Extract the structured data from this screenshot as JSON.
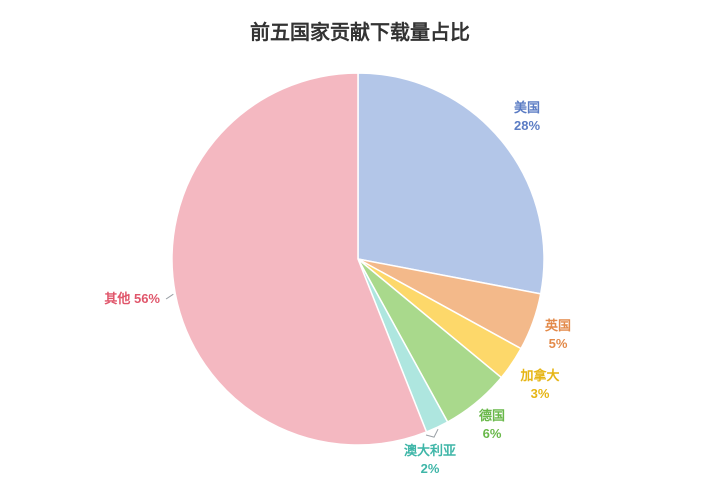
{
  "chart_data": {
    "type": "pie",
    "title": "前五国家贡献下载量占比",
    "slices": [
      {
        "name": "美国",
        "value": 28,
        "label_pct": "28%",
        "color": "#b3c6e8",
        "label_color": "#5b7cc4"
      },
      {
        "name": "英国",
        "value": 5,
        "label_pct": "5%",
        "color": "#f3b98a",
        "label_color": "#e38a4a"
      },
      {
        "name": "加拿大",
        "value": 3,
        "label_pct": "3%",
        "color": "#fdd86a",
        "label_color": "#e6b514"
      },
      {
        "name": "德国",
        "value": 6,
        "label_pct": "6%",
        "color": "#a9d98c",
        "label_color": "#69b84a"
      },
      {
        "name": "澳大利亚",
        "value": 2,
        "label_pct": "2%",
        "color": "#aee6df",
        "label_color": "#3fb6a8"
      },
      {
        "name": "其他",
        "value": 56,
        "label_pct": "56%",
        "color": "#f4b8c1",
        "label_color": "#e0566b"
      }
    ]
  }
}
